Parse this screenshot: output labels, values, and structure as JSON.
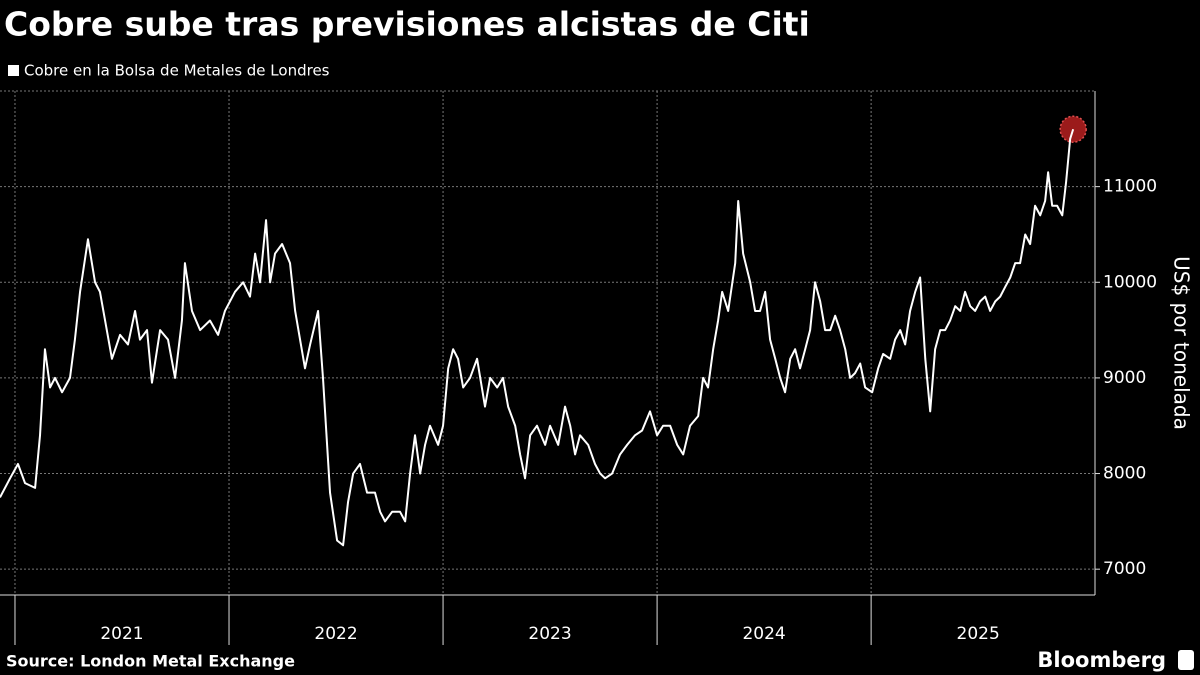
{
  "chart_data": {
    "type": "line",
    "title": "Cobre sube tras previsiones alcistas de Citi",
    "y_axis_label": "US$ por tonelada",
    "source": "Source: London Metal Exchange",
    "brand": "Bloomberg",
    "xlim": [
      2020.93,
      2026.046
    ],
    "xticks": [
      {
        "value": 2021,
        "label": "2021"
      },
      {
        "value": 2022,
        "label": "2022"
      },
      {
        "value": 2023,
        "label": "2023"
      },
      {
        "value": 2024,
        "label": "2024"
      },
      {
        "value": 2025,
        "label": "2025"
      }
    ],
    "ylim": [
      6730,
      12000
    ],
    "yticks": [
      7000,
      8000,
      9000,
      10000,
      11000
    ],
    "grid": true,
    "last_point_marker_color": "#9b1b1b",
    "x": [
      2020.93,
      2020.977,
      2021.014,
      2021.047,
      2021.094,
      2021.117,
      2021.14,
      2021.164,
      2021.187,
      2021.22,
      2021.257,
      2021.28,
      2021.304,
      2021.341,
      2021.374,
      2021.397,
      2021.421,
      2021.453,
      2021.491,
      2021.528,
      2021.561,
      2021.584,
      2021.617,
      2021.64,
      2021.678,
      2021.715,
      2021.748,
      2021.78,
      2021.794,
      2021.827,
      2021.865,
      2021.911,
      2021.949,
      2021.981,
      2022.028,
      2022.066,
      2022.098,
      2022.122,
      2022.145,
      2022.173,
      2022.192,
      2022.215,
      2022.248,
      2022.285,
      2022.309,
      2022.332,
      2022.355,
      2022.379,
      2022.416,
      2022.439,
      2022.472,
      2022.505,
      2022.533,
      2022.556,
      2022.58,
      2022.612,
      2022.645,
      2022.682,
      2022.706,
      2022.729,
      2022.762,
      2022.799,
      2022.823,
      2022.846,
      2022.869,
      2022.893,
      2022.916,
      2022.939,
      2022.977,
      2023.0,
      2023.024,
      2023.047,
      2023.07,
      2023.094,
      2023.126,
      2023.159,
      2023.196,
      2023.22,
      2023.253,
      2023.28,
      2023.304,
      2023.337,
      2023.36,
      2023.383,
      2023.407,
      2023.439,
      2023.477,
      2023.5,
      2023.538,
      2023.57,
      2023.594,
      2023.617,
      2023.64,
      2023.678,
      2023.71,
      2023.734,
      2023.757,
      2023.79,
      2023.827,
      2023.86,
      2023.897,
      2023.93,
      2023.967,
      2024.0,
      2024.028,
      2024.061,
      2024.094,
      2024.122,
      2024.154,
      2024.192,
      2024.215,
      2024.238,
      2024.262,
      2024.285,
      2024.304,
      2024.332,
      2024.365,
      2024.379,
      2024.402,
      2024.435,
      2024.458,
      2024.481,
      2024.505,
      2024.528,
      2024.552,
      2024.575,
      2024.598,
      2024.622,
      2024.645,
      2024.668,
      2024.692,
      2024.715,
      2024.738,
      2024.762,
      2024.785,
      2024.809,
      2024.832,
      2024.855,
      2024.879,
      2024.902,
      2024.925,
      2024.949,
      2024.972,
      2025.005,
      2025.033,
      2025.056,
      2025.089,
      2025.112,
      2025.136,
      2025.159,
      2025.182,
      2025.206,
      2025.229,
      2025.253,
      2025.276,
      2025.299,
      2025.323,
      2025.346,
      2025.369,
      2025.393,
      2025.416,
      2025.439,
      2025.463,
      2025.486,
      2025.509,
      2025.533,
      2025.556,
      2025.58,
      2025.603,
      2025.626,
      2025.65,
      2025.673,
      2025.696,
      2025.72,
      2025.743,
      2025.766,
      2025.79,
      2025.813,
      2025.827,
      2025.846,
      2025.869,
      2025.893,
      2025.911,
      2025.93,
      2025.944
    ],
    "series": [
      {
        "name": "Cobre en la Bolsa de Metales de Londres",
        "color": "#ffffff",
        "values": [
          7750,
          7950,
          8100,
          7900,
          7850,
          8400,
          9300,
          8900,
          9000,
          8850,
          9000,
          9400,
          9900,
          10450,
          10000,
          9900,
          9600,
          9200,
          9450,
          9350,
          9700,
          9400,
          9500,
          8950,
          9500,
          9400,
          9000,
          9600,
          10200,
          9700,
          9500,
          9600,
          9450,
          9700,
          9900,
          10000,
          9850,
          10300,
          10000,
          10650,
          10000,
          10300,
          10400,
          10200,
          9700,
          9400,
          9100,
          9350,
          9700,
          9000,
          7800,
          7300,
          7250,
          7700,
          8000,
          8100,
          7800,
          7800,
          7600,
          7500,
          7600,
          7600,
          7500,
          8000,
          8400,
          8000,
          8300,
          8500,
          8300,
          8500,
          9100,
          9300,
          9200,
          8900,
          9000,
          9200,
          8700,
          9000,
          8900,
          9000,
          8700,
          8500,
          8200,
          7950,
          8400,
          8500,
          8300,
          8500,
          8300,
          8700,
          8500,
          8200,
          8400,
          8300,
          8100,
          8000,
          7950,
          8000,
          8200,
          8300,
          8400,
          8450,
          8650,
          8400,
          8500,
          8500,
          8300,
          8200,
          8500,
          8600,
          9000,
          8900,
          9300,
          9600,
          9900,
          9700,
          10200,
          10850,
          10300,
          10000,
          9700,
          9700,
          9900,
          9400,
          9200,
          9000,
          8850,
          9200,
          9300,
          9100,
          9300,
          9500,
          10000,
          9800,
          9500,
          9500,
          9650,
          9500,
          9300,
          9000,
          9050,
          9150,
          8900,
          8850,
          9100,
          9250,
          9200,
          9400,
          9500,
          9350,
          9700,
          9900,
          10050,
          9200,
          8650,
          9300,
          9500,
          9500,
          9600,
          9750,
          9700,
          9900,
          9750,
          9700,
          9800,
          9850,
          9700,
          9800,
          9850,
          9950,
          10050,
          10200,
          10200,
          10500,
          10400,
          10800,
          10700,
          10850,
          11150,
          10800,
          10800,
          10700,
          11050,
          11500,
          11600
        ]
      }
    ]
  }
}
